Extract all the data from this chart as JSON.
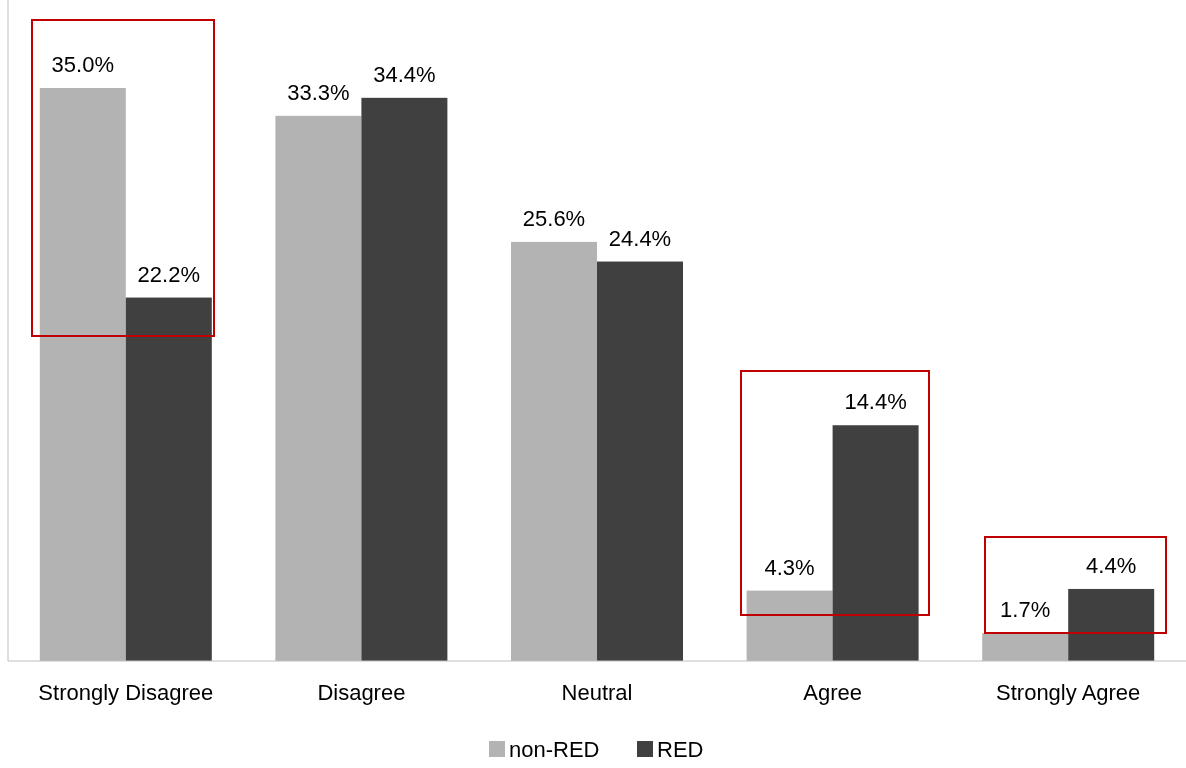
{
  "chart_data": {
    "type": "bar",
    "categories": [
      "Strongly Disagree",
      "Disagree",
      "Neutral",
      "Agree",
      "Strongly Agree"
    ],
    "series": [
      {
        "name": "non-RED",
        "color": "#b3b3b3",
        "values": [
          35.0,
          33.3,
          25.6,
          4.3,
          1.7
        ],
        "value_labels": [
          "35.0%",
          "33.3%",
          "25.6%",
          "4.3%",
          "1.7%"
        ]
      },
      {
        "name": "RED",
        "color": "#404040",
        "values": [
          22.2,
          34.4,
          24.4,
          14.4,
          4.4
        ],
        "value_labels": [
          "22.2%",
          "34.4%",
          "24.4%",
          "14.4%",
          "4.4%"
        ]
      }
    ],
    "relative": false,
    "legend": "bottom"
  }
}
